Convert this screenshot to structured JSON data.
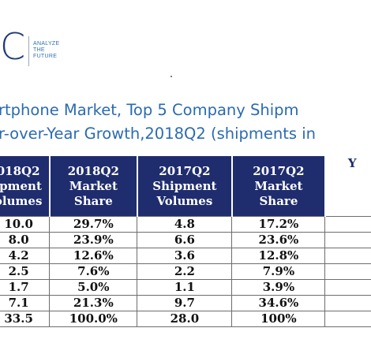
{
  "logo": {
    "mark": "C",
    "tagline": [
      "ANALYZE",
      "THE",
      "FUTURE"
    ]
  },
  "title": {
    "line1": "rtphone Market, Top 5 Company Shipm",
    "line2": "r-over-Year Growth,2018Q2 (shipments in"
  },
  "table": {
    "headers": [
      [
        "018Q2",
        "ipment",
        "olumes"
      ],
      [
        "2018Q2",
        "Market",
        "Share"
      ],
      [
        "2017Q2",
        "Shipment",
        "Volumes"
      ],
      [
        "2017Q2",
        "Market",
        "Share"
      ],
      [
        "Y"
      ]
    ],
    "rows": [
      [
        "10.0",
        "29.7%",
        "4.8",
        "17.2%",
        ""
      ],
      [
        "8.0",
        "23.9%",
        "6.6",
        "23.6%",
        ""
      ],
      [
        "4.2",
        "12.6%",
        "3.6",
        "12.8%",
        ""
      ],
      [
        "2.5",
        "7.6%",
        "2.2",
        "7.9%",
        ""
      ],
      [
        "1.7",
        "5.0%",
        "1.1",
        "3.9%",
        ""
      ],
      [
        "7.1",
        "21.3%",
        "9.7",
        "34.6%",
        ""
      ],
      [
        "33.5",
        "100.0%",
        "28.0",
        "100%",
        ""
      ]
    ]
  },
  "colors": {
    "header_bg": "#1f2d6e",
    "title_text": "#2a6bb0",
    "logo_text": "#1d3b78"
  }
}
